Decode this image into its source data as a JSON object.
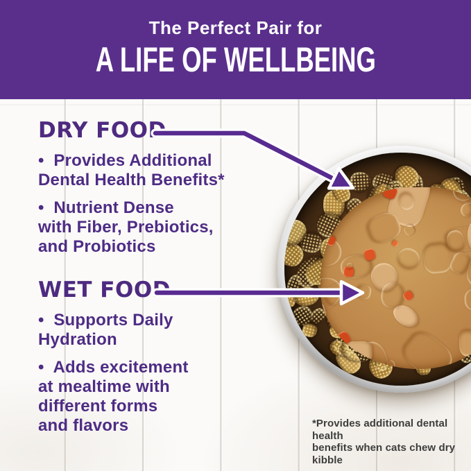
{
  "header": {
    "eyebrow": "The Perfect Pair for",
    "title": "A LIFE OF WELLBEING"
  },
  "sections": {
    "dry": {
      "heading": "DRY FOOD",
      "bullets": [
        [
          "•  Provides Additional",
          "Dental Health Benefits*"
        ],
        [
          "•  Nutrient Dense",
          "with Fiber, Prebiotics,",
          "and Probiotics"
        ]
      ]
    },
    "wet": {
      "heading": "WET FOOD",
      "bullets": [
        [
          "•  Supports Daily",
          "Hydration"
        ],
        [
          "•  Adds excitement",
          "at mealtime with",
          "different forms",
          "and flavors"
        ]
      ]
    }
  },
  "footnote": [
    "*Provides additional dental health",
    "benefits when cats chew dry kibble"
  ],
  "illustration": {
    "description": "Stainless steel bowl holding a ring of dry kibble around a center of wet food chunks in gravy with carrot bits",
    "dry_arrow_target": "kibble ring",
    "wet_arrow_target": "wet food center"
  },
  "icons": {
    "dry_arrow": "callout-arrow-down-right",
    "wet_arrow": "callout-arrow-right"
  },
  "colors": {
    "banner": "#5a2f8c",
    "heading": "#4e2a80",
    "body": "#4e2c85",
    "arrow": "#582b90",
    "footnote": "#3d3d3d",
    "kibble": "#b3883b",
    "gravy": "#bb8347",
    "carrot": "#dd5524",
    "steel": "#d6d6d6"
  }
}
